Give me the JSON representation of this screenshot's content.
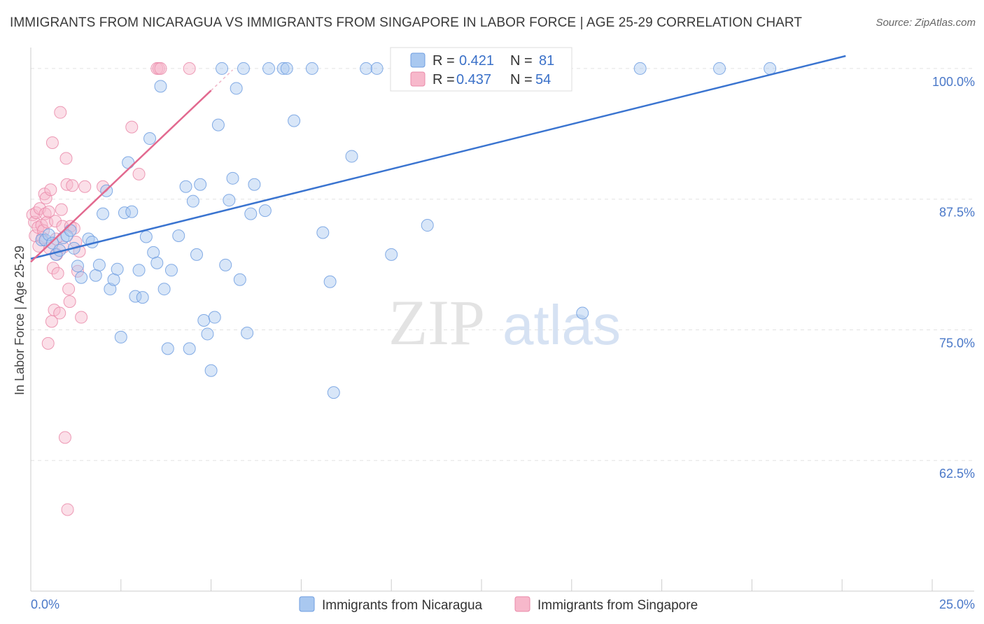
{
  "header": {
    "title": "IMMIGRANTS FROM NICARAGUA VS IMMIGRANTS FROM SINGAPORE IN LABOR FORCE | AGE 25-29 CORRELATION CHART",
    "source": "Source: ZipAtlas.com"
  },
  "watermark": {
    "zip": "ZIP",
    "atlas": "atlas"
  },
  "legend": {
    "r_label": "R = ",
    "n_label": "N = ",
    "items": [
      {
        "name": "Immigrants from Nicaragua",
        "r": "0.421",
        "n": "81",
        "fill": "#a9c8f0",
        "stroke": "#6f9ee0"
      },
      {
        "name": "Immigrants from Singapore",
        "r": "0.437",
        "n": "54",
        "fill": "#f7b8cb",
        "stroke": "#ea8aa9"
      }
    ]
  },
  "chart_data": {
    "type": "scatter",
    "title": "IMMIGRANTS FROM NICARAGUA VS IMMIGRANTS FROM SINGAPORE IN LABOR FORCE | AGE 25-29 CORRELATION CHART",
    "xlabel": "",
    "ylabel": "In Labor Force | Age 25-29",
    "xlim": [
      0,
      25
    ],
    "ylim": [
      50,
      101.2
    ],
    "x_tick_labels": [
      "0.0%",
      "25.0%"
    ],
    "y_ticks": [
      62.5,
      75.0,
      87.5,
      100.0
    ],
    "y_tick_labels": [
      "62.5%",
      "75.0%",
      "87.5%",
      "100.0%"
    ],
    "grid": true,
    "legend_position": "top-center",
    "series": [
      {
        "name": "Immigrants from Nicaragua",
        "color": "#6f9ee0",
        "trend": {
          "x": [
            0,
            22.6
          ],
          "y": [
            81.8,
            101.2
          ],
          "color": "#3a74d0"
        },
        "points": [
          [
            0.3,
            83.6
          ],
          [
            0.4,
            83.6
          ],
          [
            0.5,
            84.1
          ],
          [
            0.6,
            83.3
          ],
          [
            0.7,
            82.2
          ],
          [
            0.8,
            82.6
          ],
          [
            0.9,
            83.8
          ],
          [
            1.0,
            84.0
          ],
          [
            1.1,
            84.5
          ],
          [
            1.2,
            82.8
          ],
          [
            1.3,
            81.1
          ],
          [
            1.4,
            80.0
          ],
          [
            1.6,
            83.7
          ],
          [
            1.7,
            83.4
          ],
          [
            1.8,
            80.2
          ],
          [
            1.9,
            81.2
          ],
          [
            2.0,
            86.1
          ],
          [
            2.1,
            88.3
          ],
          [
            2.2,
            78.9
          ],
          [
            2.3,
            79.8
          ],
          [
            2.4,
            80.8
          ],
          [
            2.5,
            74.3
          ],
          [
            2.6,
            86.2
          ],
          [
            2.7,
            91.0
          ],
          [
            2.8,
            86.3
          ],
          [
            2.9,
            78.2
          ],
          [
            3.0,
            80.7
          ],
          [
            3.1,
            78.1
          ],
          [
            3.2,
            83.9
          ],
          [
            3.3,
            93.3
          ],
          [
            3.4,
            82.4
          ],
          [
            3.5,
            81.4
          ],
          [
            3.6,
            98.3
          ],
          [
            3.7,
            78.9
          ],
          [
            3.8,
            73.2
          ],
          [
            3.9,
            80.7
          ],
          [
            4.1,
            84.0
          ],
          [
            4.3,
            88.7
          ],
          [
            4.4,
            73.2
          ],
          [
            4.5,
            87.3
          ],
          [
            4.6,
            82.2
          ],
          [
            4.7,
            88.9
          ],
          [
            4.8,
            75.9
          ],
          [
            4.9,
            74.6
          ],
          [
            5.0,
            71.1
          ],
          [
            5.1,
            76.2
          ],
          [
            5.2,
            94.6
          ],
          [
            5.3,
            100.0
          ],
          [
            5.4,
            81.2
          ],
          [
            5.5,
            87.4
          ],
          [
            5.6,
            89.5
          ],
          [
            5.7,
            98.1
          ],
          [
            5.8,
            79.8
          ],
          [
            5.9,
            100.0
          ],
          [
            6.0,
            74.7
          ],
          [
            6.1,
            86.1
          ],
          [
            6.2,
            88.9
          ],
          [
            6.5,
            86.4
          ],
          [
            6.6,
            100.0
          ],
          [
            7.0,
            100.0
          ],
          [
            7.1,
            100.0
          ],
          [
            7.3,
            95.0
          ],
          [
            7.8,
            100.0
          ],
          [
            8.1,
            84.3
          ],
          [
            8.3,
            79.6
          ],
          [
            8.4,
            69.0
          ],
          [
            8.9,
            91.6
          ],
          [
            9.3,
            100.0
          ],
          [
            9.6,
            100.0
          ],
          [
            10.0,
            82.2
          ],
          [
            11.0,
            85.0
          ],
          [
            15.3,
            76.6
          ],
          [
            16.9,
            100.0
          ],
          [
            19.1,
            100.0
          ],
          [
            20.5,
            100.0
          ]
        ]
      },
      {
        "name": "Immigrants from Singapore",
        "color": "#ea8aa9",
        "trend": {
          "x": [
            0,
            5.0
          ],
          "y": [
            81.5,
            97.9
          ],
          "color": "#e2698f"
        },
        "points": [
          [
            0.05,
            86.0
          ],
          [
            0.1,
            85.3
          ],
          [
            0.12,
            84.0
          ],
          [
            0.15,
            86.2
          ],
          [
            0.2,
            84.8
          ],
          [
            0.22,
            83.0
          ],
          [
            0.25,
            86.6
          ],
          [
            0.3,
            85.0
          ],
          [
            0.32,
            83.8
          ],
          [
            0.35,
            84.5
          ],
          [
            0.38,
            88.0
          ],
          [
            0.4,
            86.1
          ],
          [
            0.42,
            87.6
          ],
          [
            0.45,
            85.3
          ],
          [
            0.48,
            73.7
          ],
          [
            0.5,
            86.3
          ],
          [
            0.52,
            82.8
          ],
          [
            0.55,
            88.4
          ],
          [
            0.58,
            75.8
          ],
          [
            0.6,
            92.9
          ],
          [
            0.62,
            80.9
          ],
          [
            0.65,
            76.9
          ],
          [
            0.68,
            85.4
          ],
          [
            0.7,
            83.7
          ],
          [
            0.72,
            82.2
          ],
          [
            0.75,
            80.4
          ],
          [
            0.8,
            76.6
          ],
          [
            0.82,
            95.8
          ],
          [
            0.85,
            86.5
          ],
          [
            0.88,
            84.9
          ],
          [
            0.9,
            82.9
          ],
          [
            0.95,
            64.7
          ],
          [
            0.98,
            91.4
          ],
          [
            1.0,
            88.9
          ],
          [
            1.02,
            57.8
          ],
          [
            1.05,
            78.9
          ],
          [
            1.08,
            77.7
          ],
          [
            1.1,
            84.9
          ],
          [
            1.15,
            88.8
          ],
          [
            1.2,
            84.7
          ],
          [
            1.25,
            83.4
          ],
          [
            1.3,
            80.6
          ],
          [
            1.35,
            82.5
          ],
          [
            1.4,
            76.2
          ],
          [
            1.5,
            88.7
          ],
          [
            2.0,
            88.7
          ],
          [
            2.8,
            94.4
          ],
          [
            3.0,
            89.9
          ],
          [
            3.5,
            100.0
          ],
          [
            3.55,
            100.0
          ],
          [
            3.6,
            100.0
          ],
          [
            4.4,
            100.0
          ]
        ]
      }
    ]
  }
}
